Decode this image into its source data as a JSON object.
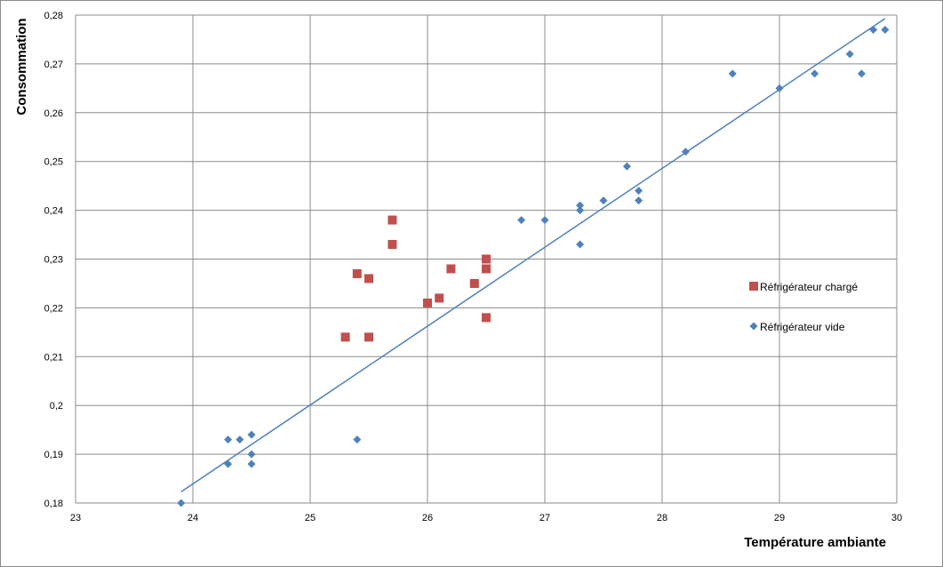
{
  "chart_data": {
    "type": "scatter",
    "xlabel": "Température ambiante",
    "ylabel": "Consommation",
    "xlim": [
      23,
      30
    ],
    "ylim": [
      0.18,
      0.28
    ],
    "x_ticks": [
      "23",
      "24",
      "25",
      "26",
      "27",
      "28",
      "29",
      "30"
    ],
    "y_ticks": [
      "0,18",
      "0,19",
      "0,2",
      "0,21",
      "0,22",
      "0,23",
      "0,24",
      "0,25",
      "0,26",
      "0,27",
      "0,28"
    ],
    "grid": true,
    "legend_position": "right",
    "series": [
      {
        "name": "Réfrigérateur chargé",
        "color": "#c0504d",
        "marker": "square",
        "points": [
          [
            25.3,
            0.214
          ],
          [
            25.4,
            0.227
          ],
          [
            25.5,
            0.226
          ],
          [
            25.5,
            0.214
          ],
          [
            25.7,
            0.238
          ],
          [
            25.7,
            0.233
          ],
          [
            26.0,
            0.221
          ],
          [
            26.1,
            0.222
          ],
          [
            26.2,
            0.228
          ],
          [
            26.4,
            0.225
          ],
          [
            26.5,
            0.23
          ],
          [
            26.5,
            0.228
          ],
          [
            26.5,
            0.218
          ]
        ]
      },
      {
        "name": "Réfrigérateur vide",
        "color": "#4f81bd",
        "marker": "diamond",
        "points": [
          [
            23.9,
            0.18
          ],
          [
            24.3,
            0.193
          ],
          [
            24.3,
            0.188
          ],
          [
            24.4,
            0.193
          ],
          [
            24.5,
            0.194
          ],
          [
            24.5,
            0.19
          ],
          [
            24.5,
            0.188
          ],
          [
            25.4,
            0.193
          ],
          [
            26.8,
            0.238
          ],
          [
            27.0,
            0.238
          ],
          [
            27.3,
            0.241
          ],
          [
            27.3,
            0.24
          ],
          [
            27.3,
            0.233
          ],
          [
            27.5,
            0.242
          ],
          [
            27.7,
            0.249
          ],
          [
            27.8,
            0.244
          ],
          [
            27.8,
            0.242
          ],
          [
            28.2,
            0.252
          ],
          [
            28.6,
            0.268
          ],
          [
            29.0,
            0.265
          ],
          [
            29.3,
            0.268
          ],
          [
            29.6,
            0.272
          ],
          [
            29.7,
            0.268
          ],
          [
            29.8,
            0.277
          ],
          [
            29.9,
            0.277
          ]
        ]
      }
    ],
    "trendline": {
      "color": "#4f81bd",
      "from": [
        23.9,
        0.1823
      ],
      "to": [
        29.9,
        0.2793
      ]
    }
  }
}
